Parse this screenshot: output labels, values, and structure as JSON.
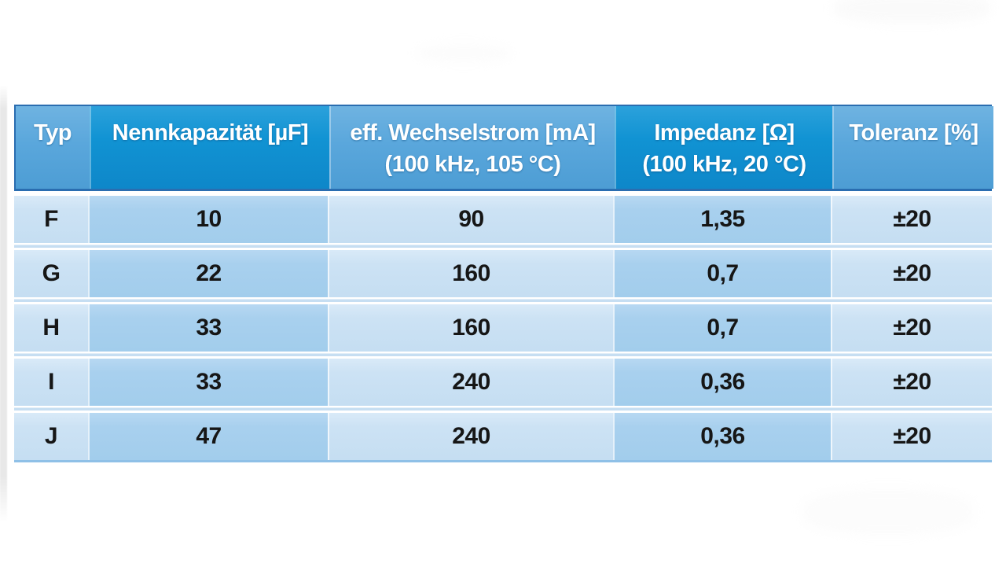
{
  "colors": {
    "header-dark": "#1193d3",
    "header-light": "#5aa7dc",
    "header-border": "#2a6db0",
    "cell-dark": "#a8d0ee",
    "cell-light": "#cce2f4",
    "separator-blue": "#c6def2",
    "table-bottom": "#8fc0e7",
    "header-text": "#ffffff",
    "cell-text": "#161616"
  },
  "table": {
    "columns": [
      {
        "label": "Typ",
        "sub": ""
      },
      {
        "label": "Nennkapazität [µF]",
        "sub": ""
      },
      {
        "label": "eff. Wechselstrom [mA]",
        "sub": "(100 kHz, 105 °C)"
      },
      {
        "label": "Impedanz [Ω]",
        "sub": "(100 kHz, 20 °C)"
      },
      {
        "label": "Toleranz [%]",
        "sub": ""
      }
    ],
    "rows": [
      {
        "typ": "F",
        "nennkapazitaet": "10",
        "wechselstrom": "90",
        "impedanz": "1,35",
        "toleranz": "±20"
      },
      {
        "typ": "G",
        "nennkapazitaet": "22",
        "wechselstrom": "160",
        "impedanz": "0,7",
        "toleranz": "±20"
      },
      {
        "typ": "H",
        "nennkapazitaet": "33",
        "wechselstrom": "160",
        "impedanz": "0,7",
        "toleranz": "±20"
      },
      {
        "typ": "I",
        "nennkapazitaet": "33",
        "wechselstrom": "240",
        "impedanz": "0,36",
        "toleranz": "±20"
      },
      {
        "typ": "J",
        "nennkapazitaet": "47",
        "wechselstrom": "240",
        "impedanz": "0,36",
        "toleranz": "±20"
      }
    ]
  }
}
